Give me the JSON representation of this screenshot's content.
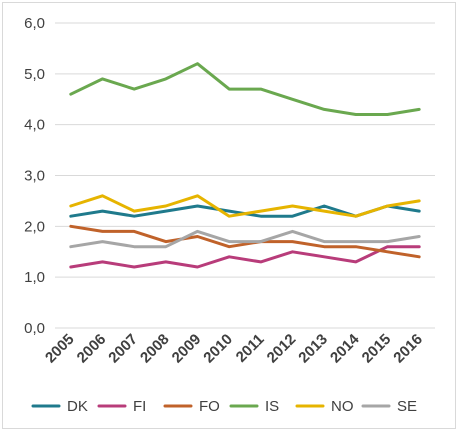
{
  "chart_data": {
    "type": "line",
    "title": "",
    "xlabel": "",
    "ylabel": "",
    "ylim": [
      0,
      6
    ],
    "yticks": [
      "0,0",
      "1,0",
      "2,0",
      "3,0",
      "4,0",
      "5,0",
      "6,0"
    ],
    "categories": [
      "2005",
      "2006",
      "2007",
      "2008",
      "2009",
      "2010",
      "2011",
      "2012",
      "2013",
      "2014",
      "2015",
      "2016"
    ],
    "grid": true,
    "legend_position": "bottom",
    "series": [
      {
        "name": "DK",
        "color": "#1f7a8c",
        "values": [
          2.2,
          2.3,
          2.2,
          2.3,
          2.4,
          2.3,
          2.2,
          2.2,
          2.4,
          2.2,
          2.4,
          2.3
        ]
      },
      {
        "name": "FI",
        "color": "#b83c7a",
        "values": [
          1.2,
          1.3,
          1.2,
          1.3,
          1.2,
          1.4,
          1.3,
          1.5,
          1.4,
          1.3,
          1.6,
          1.6
        ]
      },
      {
        "name": "FO",
        "color": "#c0622a",
        "values": [
          2.0,
          1.9,
          1.9,
          1.7,
          1.8,
          1.6,
          1.7,
          1.7,
          1.6,
          1.6,
          1.5,
          1.4
        ]
      },
      {
        "name": "IS",
        "color": "#6aa84f",
        "values": [
          4.6,
          4.9,
          4.7,
          4.9,
          5.2,
          4.7,
          4.7,
          4.5,
          4.3,
          4.2,
          4.2,
          4.3
        ]
      },
      {
        "name": "NO",
        "color": "#e6b400",
        "values": [
          2.4,
          2.6,
          2.3,
          2.4,
          2.6,
          2.2,
          2.3,
          2.4,
          2.3,
          2.2,
          2.4,
          2.5
        ]
      },
      {
        "name": "SE",
        "color": "#a6a6a6",
        "values": [
          1.6,
          1.7,
          1.6,
          1.6,
          1.9,
          1.7,
          1.7,
          1.9,
          1.7,
          1.7,
          1.7,
          1.8
        ]
      }
    ]
  }
}
